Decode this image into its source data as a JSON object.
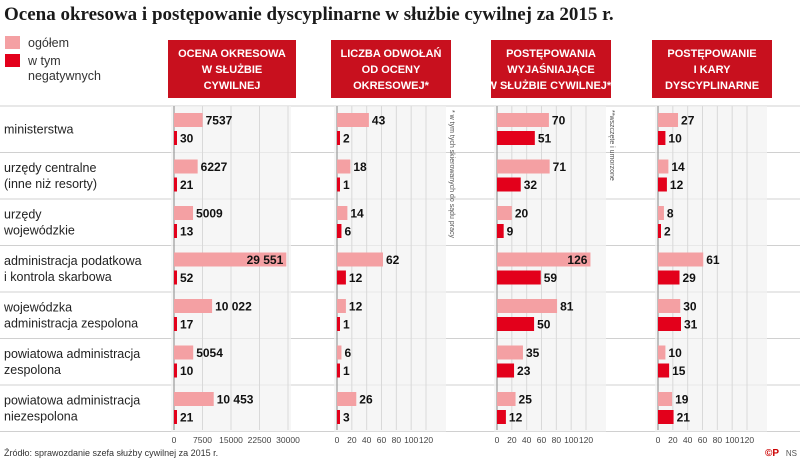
{
  "title": "Ocena okresowa i postępowanie dyscyplinarne w służbie cywilnej za 2015 r.",
  "legend": {
    "total": "ogółem",
    "negative_line1": "w tym",
    "negative_line2": "negatywnych"
  },
  "colors": {
    "total": "#f4a0a3",
    "negative": "#e3001b",
    "header": "#c8101e",
    "grid": "#d9d9d9",
    "band": "#f2f2f2"
  },
  "source": "Źródło: sprawozdanie szefa służby cywilnej za 2015 r.",
  "logo": "©P",
  "credit": "NS",
  "chart_data": {
    "type": "bar",
    "categories": [
      [
        "ministerstwa"
      ],
      [
        "urzędy centralne",
        "(inne niż resorty)"
      ],
      [
        "urzędy",
        "wojewódzkie"
      ],
      [
        "administracja podatkowa",
        "i kontrola skarbowa"
      ],
      [
        "wojewódzka",
        "administracja zespolona"
      ],
      [
        "powiatowa administracja",
        "zespolona"
      ],
      [
        "powiatowa administracja",
        "niezespolona"
      ]
    ],
    "panels": [
      {
        "title": [
          "OCENA OKRESOWA",
          "W SŁUŻBIE",
          "CYWILNEJ"
        ],
        "total": [
          7537,
          6227,
          5009,
          29551,
          10022,
          5054,
          10453
        ],
        "total_labels": [
          "7537",
          "6227",
          "5009",
          "29 551",
          "10 022",
          "5054",
          "10 453"
        ],
        "negative": [
          30,
          21,
          13,
          52,
          17,
          10,
          21
        ],
        "xlim": [
          0,
          30000
        ],
        "ticks": [
          "0",
          "7500",
          "15000",
          "22500",
          "30000"
        ]
      },
      {
        "title": [
          "LICZBA ODWOŁAŃ",
          "OD OCENY",
          "OKRESOWEJ*"
        ],
        "total": [
          43,
          18,
          14,
          62,
          12,
          6,
          26
        ],
        "total_labels": [
          "43",
          "18",
          "14",
          "62",
          "12",
          "6",
          "26"
        ],
        "negative": [
          2,
          1,
          6,
          12,
          1,
          1,
          3
        ],
        "xlim": [
          0,
          120
        ],
        "ticks": [
          "0",
          "20",
          "40",
          "60",
          "80",
          "100",
          "120"
        ],
        "note": "* w tym tych skierowanych do sądu pracy"
      },
      {
        "title": [
          "POSTĘPOWANIA",
          "WYJAŚNIAJĄCE",
          "W SŁUŻBIE CYWILNEJ**"
        ],
        "total": [
          70,
          71,
          20,
          126,
          81,
          35,
          25
        ],
        "total_labels": [
          "70",
          "71",
          "20",
          "126",
          "81",
          "35",
          "25"
        ],
        "negative": [
          51,
          32,
          9,
          59,
          50,
          23,
          12
        ],
        "xlim": [
          0,
          120
        ],
        "ticks": [
          "0",
          "20",
          "40",
          "60",
          "80",
          "100",
          "120"
        ],
        "note": "**wszczęte i umorzone"
      },
      {
        "title": [
          "POSTĘPOWANIE",
          "I KARY",
          "DYSCYPLINARNE"
        ],
        "total": [
          27,
          14,
          8,
          61,
          30,
          10,
          19
        ],
        "total_labels": [
          "27",
          "14",
          "8",
          "61",
          "30",
          "10",
          "19"
        ],
        "negative": [
          10,
          12,
          2,
          29,
          31,
          15,
          21
        ],
        "xlim": [
          0,
          120
        ],
        "ticks": [
          "0",
          "20",
          "40",
          "60",
          "80",
          "100",
          "120"
        ]
      }
    ]
  }
}
